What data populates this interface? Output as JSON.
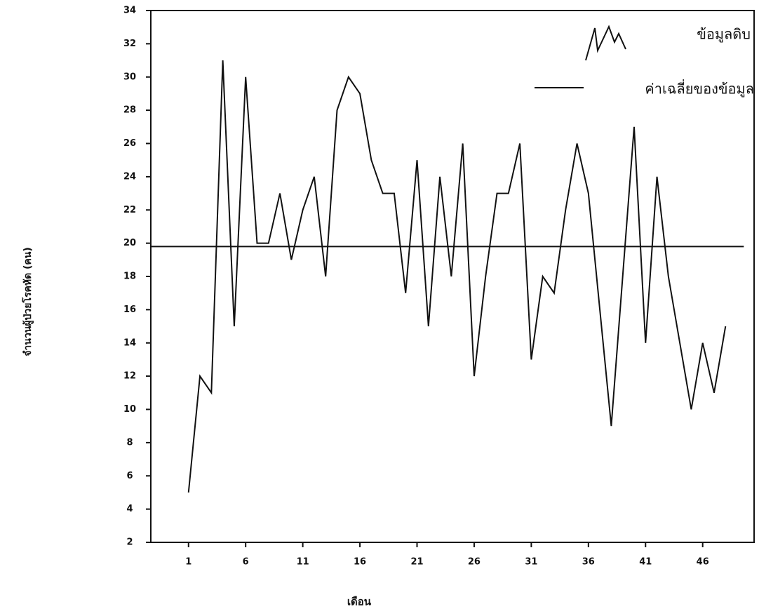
{
  "chart_data": {
    "type": "line",
    "x_label": "เดือน",
    "y_label": "จำนวนผู้ป่วยโรคหัด (คน)",
    "x": [
      1,
      2,
      3,
      4,
      5,
      6,
      7,
      8,
      9,
      10,
      11,
      12,
      13,
      14,
      15,
      16,
      17,
      18,
      19,
      20,
      21,
      22,
      23,
      24,
      25,
      26,
      27,
      28,
      29,
      30,
      31,
      32,
      33,
      34,
      35,
      36,
      37,
      38,
      39,
      40,
      41,
      42,
      43,
      44,
      45,
      46,
      47,
      48
    ],
    "series": [
      {
        "name": "ข้อมูลดิบ",
        "color": "#111111",
        "values": [
          5,
          12,
          11,
          31,
          15,
          30,
          20,
          20,
          23,
          19,
          22,
          24,
          18,
          28,
          30,
          29,
          25,
          23,
          23,
          17,
          25,
          15,
          24,
          18,
          26,
          12,
          18,
          23,
          23,
          26,
          13,
          18,
          17,
          22,
          26,
          23,
          16,
          9,
          18,
          27,
          14,
          24,
          18,
          14,
          10,
          14,
          11,
          15
        ]
      },
      {
        "name": "ค่าเฉลี่ยของข้อมูล",
        "color": "#111111",
        "x": [
          -2.3,
          49.6
        ],
        "values": [
          19.8,
          19.8
        ]
      }
    ],
    "xlim": [
      -2.3,
      50.5
    ],
    "ylim": [
      2,
      34
    ],
    "xticks": [
      1,
      6,
      11,
      16,
      21,
      26,
      31,
      36,
      41,
      46
    ],
    "yticks": [
      2,
      4,
      6,
      8,
      10,
      12,
      14,
      16,
      18,
      20,
      22,
      24,
      26,
      28,
      30,
      32,
      34
    ],
    "legend": "upper right"
  }
}
